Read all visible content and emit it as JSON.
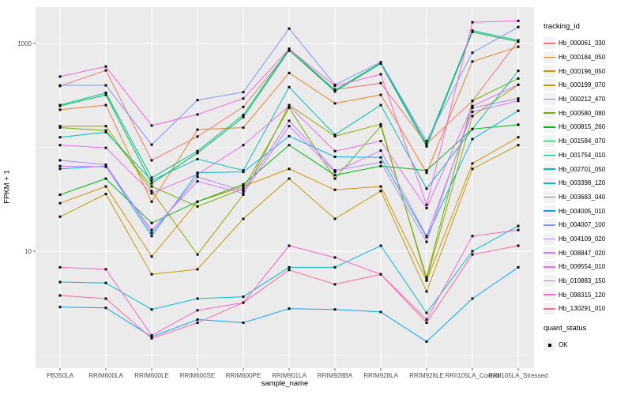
{
  "chart_data": {
    "type": "line",
    "title": "",
    "xlabel": "sample_name",
    "ylabel": "FPKM + 1",
    "x_categories": [
      "PB350LA",
      "RRIM600LA",
      "RRIM600LE",
      "RRIM600SE",
      "RRIM600PE",
      "RRIM901LA",
      "RRIM928BA",
      "RRIM928LA",
      "RRIM928LE",
      "RRII105LA_Control",
      "RRII105LA_Stressed"
    ],
    "y_scale": "log10",
    "y_tick_labels": [
      "1000",
      "10"
    ],
    "y_ticks": [
      1000,
      10
    ],
    "y_minor_ticks": [
      100,
      1
    ],
    "ylim": [
      1.2,
      2200
    ],
    "grid": "on",
    "legend_position": "right",
    "legend_title": "tracking_id",
    "legend2_title": "quant_status",
    "quant_status_label": "OK",
    "style": {
      "panel_bg": "#EBEBEB",
      "grid_color": "#FFFFFF",
      "tick_label_color": "#4D4D4D",
      "axis_tick_color": "#333333",
      "point_color": "#000000",
      "legend_key_bg": "#F2F2F2"
    },
    "series": [
      {
        "name": "Hb_000061_330",
        "color": "#F8766D",
        "values": [
          390,
          550,
          75,
          127,
          245,
          850,
          360,
          415,
          108,
          280,
          1060
        ]
      },
      {
        "name": "Hb_000184_050",
        "color": "#E9842C",
        "values": [
          230,
          255,
          30,
          148,
          155,
          520,
          265,
          320,
          57,
          670,
          930
        ]
      },
      {
        "name": "Hb_000196_050",
        "color": "#D69100",
        "values": [
          29,
          42,
          8.9,
          30,
          42,
          62,
          39,
          42,
          5.2,
          70,
          125
        ]
      },
      {
        "name": "Hb_000199_070",
        "color": "#BC9D00",
        "values": [
          21.5,
          35.5,
          6,
          6.7,
          20.5,
          50,
          20.5,
          38,
          4.1,
          62,
          105
        ]
      },
      {
        "name": "Hb_000212_470",
        "color": "#9CA700",
        "values": [
          160,
          160,
          38,
          9.3,
          35,
          255,
          128,
          167,
          5.3,
          200,
          400
        ]
      },
      {
        "name": "Hb_000580_080",
        "color": "#6FB000",
        "values": [
          155,
          145,
          42,
          27,
          40,
          240,
          50,
          160,
          5.6,
          280,
          460
        ]
      },
      {
        "name": "Hb_000815_260",
        "color": "#00B813",
        "values": [
          35,
          50,
          18.7,
          30,
          44,
          105,
          54,
          66,
          60,
          150,
          165
        ]
      },
      {
        "name": "Hb_001584_070",
        "color": "#00BC56",
        "values": [
          250,
          320,
          45,
          88,
          195,
          860,
          345,
          640,
          102,
          1290,
          1040
        ]
      },
      {
        "name": "Hb_001754_010",
        "color": "#00C08E",
        "values": [
          255,
          335,
          51,
          92,
          205,
          890,
          355,
          650,
          108,
          1330,
          1070
        ]
      },
      {
        "name": "Hb_002701_050",
        "color": "#00C0B6",
        "values": [
          125,
          140,
          48,
          77,
          60,
          380,
          132,
          255,
          40,
          150,
          545
        ]
      },
      {
        "name": "Hb_003398_120",
        "color": "#00BDD4",
        "values": [
          5.05,
          4.95,
          2.75,
          3.5,
          3.65,
          7,
          7,
          11.3,
          2.55,
          10,
          17.5
        ]
      },
      {
        "name": "Hb_003683_040",
        "color": "#00B5EC",
        "values": [
          62,
          66,
          14,
          57,
          58,
          128,
          81,
          80,
          13.7,
          120,
          225
        ]
      },
      {
        "name": "Hb_004005_010",
        "color": "#00A7FF",
        "values": [
          2.9,
          2.85,
          1.5,
          2.2,
          2.05,
          2.8,
          2.75,
          2.6,
          1.35,
          3.5,
          7
        ]
      },
      {
        "name": "Hb_004007_100",
        "color": "#7E96FF",
        "values": [
          395,
          395,
          106,
          285,
          340,
          1390,
          400,
          660,
          115,
          815,
          1440
        ]
      },
      {
        "name": "Hb_004109_020",
        "color": "#AF87FF",
        "values": [
          75,
          68,
          15,
          52,
          38,
          180,
          60,
          72,
          12.3,
          240,
          295
        ]
      },
      {
        "name": "Hb_008847_020",
        "color": "#D277FF",
        "values": [
          66,
          65,
          16,
          47,
          36,
          160,
          58,
          93,
          14,
          220,
          280
        ]
      },
      {
        "name": "Hb_009554_010",
        "color": "#E96BF3",
        "values": [
          105,
          99,
          36,
          55,
          105,
          250,
          92,
          115,
          26,
          250,
          400
        ]
      },
      {
        "name": "Hb_010883_150",
        "color": "#F863DF",
        "values": [
          480,
          600,
          162,
          207,
          295,
          885,
          390,
          505,
          28,
          1600,
          1650
        ]
      },
      {
        "name": "Hb_098315_120",
        "color": "#FF61C7",
        "values": [
          7,
          6.7,
          1.55,
          2.7,
          3.2,
          11.3,
          8.7,
          6,
          2.2,
          14,
          16
        ]
      },
      {
        "name": "Hb_130291_010",
        "color": "#FF689E",
        "values": [
          3.75,
          3.5,
          1.45,
          2.05,
          3.2,
          6.6,
          4.8,
          6,
          2.05,
          9.3,
          11.3
        ]
      }
    ]
  }
}
